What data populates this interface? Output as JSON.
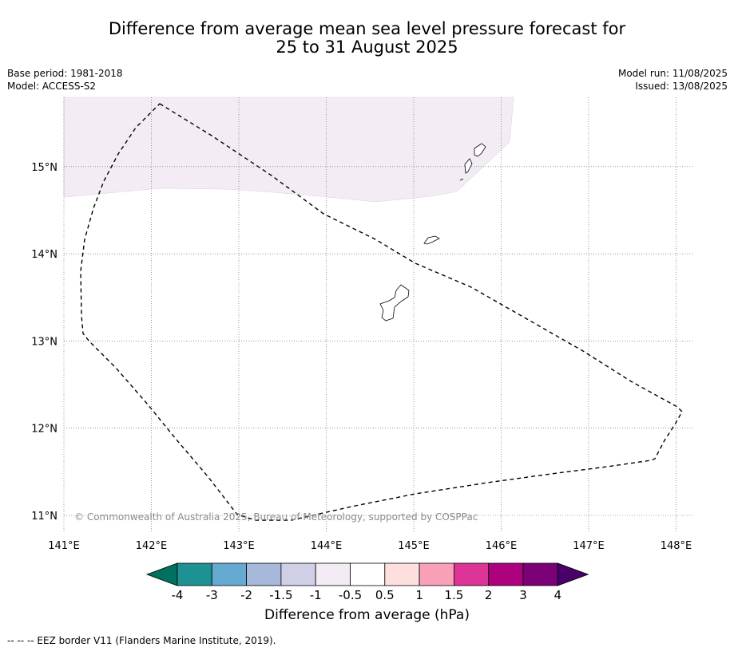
{
  "title": {
    "line1": "Difference from average mean sea level pressure forecast for",
    "line2": "25 to 31 August 2025"
  },
  "meta_left": {
    "base_period": "Base period: 1981-2018",
    "model": "Model: ACCESS-S2"
  },
  "meta_right": {
    "model_run": "Model run: 11/08/2025",
    "issued": "Issued: 13/08/2025"
  },
  "map": {
    "lon_range": [
      141,
      148.2
    ],
    "lat_range": [
      10.75,
      15.8
    ],
    "lon_ticks": [
      "141°E",
      "142°E",
      "143°E",
      "144°E",
      "145°E",
      "146°E",
      "147°E",
      "148°E"
    ],
    "lat_ticks": [
      "11°N",
      "12°N",
      "13°N",
      "14°N",
      "15°N"
    ],
    "background_color": "#ffffff",
    "anomaly_region": {
      "band": "-1 to -0.5",
      "color": "#f4ecf5"
    }
  },
  "copyright": "© Commonwealth of Australia 2025, Bureau of Meteorology, supported by COSPPac",
  "colorbar": {
    "title": "Difference from average (hPa)",
    "tick_labels": [
      "-4",
      "-3",
      "-2",
      "-1.5",
      "-1",
      "-0.5",
      "0.5",
      "1",
      "1.5",
      "2",
      "3",
      "4"
    ],
    "colors": [
      "#00705f",
      "#1e9193",
      "#66aad2",
      "#a6b9da",
      "#cfcfe6",
      "#f4ecf5",
      "#ffffff",
      "#fde0dd",
      "#f9a0b8",
      "#dd3497",
      "#ae017e",
      "#7a0177",
      "#49006a"
    ]
  },
  "footer": "--  --  -- EEZ border V11 (Flanders Marine Institute, 2019)."
}
